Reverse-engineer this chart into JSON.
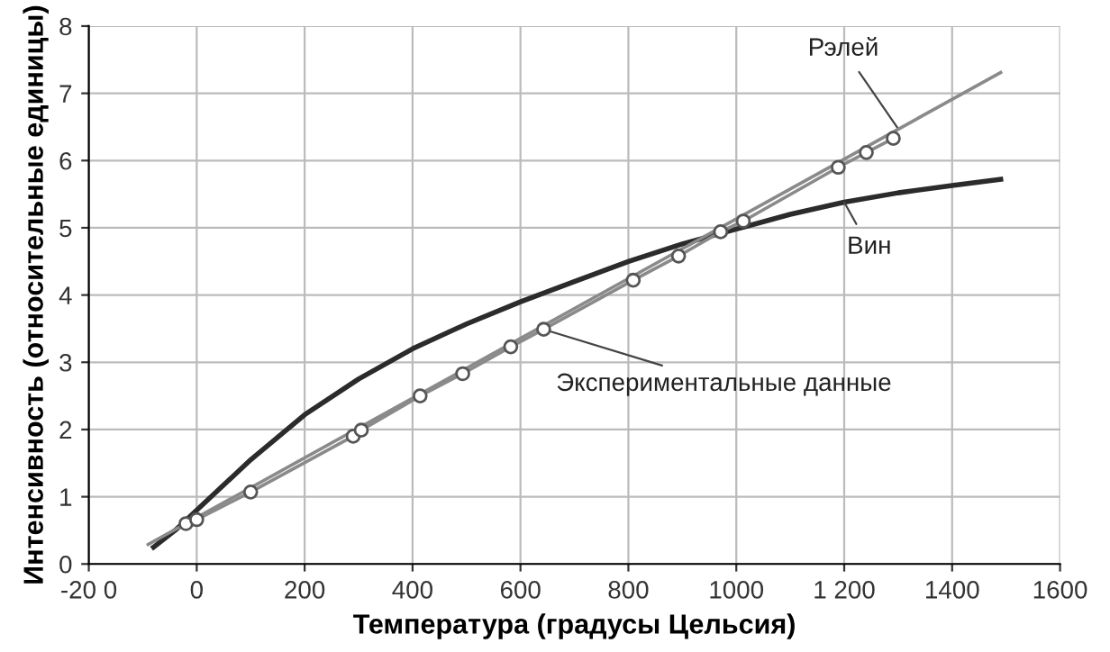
{
  "chart_data": {
    "type": "line",
    "xlabel": "Температура (градусы Цельсия)",
    "ylabel": "Интенсивность (относительные единицы)",
    "xlim": [
      -200,
      1600
    ],
    "xticks": [
      {
        "value": -200,
        "label": "-20 0"
      },
      0,
      200,
      400,
      600,
      800,
      1000,
      {
        "value": 1200,
        "label": "1 200"
      },
      1400,
      1600
    ],
    "ylim": [
      0,
      8
    ],
    "yticks": [
      0,
      1,
      2,
      3,
      4,
      5,
      6,
      7,
      8
    ],
    "grid": true,
    "series": [
      {
        "name": "Вин",
        "color": "#2b2b2b",
        "x": [
          -80,
          -40,
          0,
          100,
          200,
          300,
          400,
          500,
          600,
          700,
          800,
          900,
          1000,
          1100,
          1200,
          1300,
          1400,
          1490
        ],
        "values": [
          0.25,
          0.5,
          0.8,
          1.55,
          2.22,
          2.75,
          3.2,
          3.57,
          3.9,
          4.2,
          4.5,
          4.76,
          4.98,
          5.2,
          5.38,
          5.52,
          5.63,
          5.72
        ]
      },
      {
        "name": "Рэлей",
        "color": "#8a8a8a",
        "x": [
          -90,
          1490
        ],
        "values": [
          0.29,
          7.31
        ]
      },
      {
        "name": "Экспериментальные данные",
        "color": "#8a8a8a",
        "marker": "circle",
        "x": [
          -20,
          0,
          100,
          290,
          305,
          414,
          493,
          582,
          643,
          809,
          893,
          971,
          1013,
          1189,
          1241,
          1291
        ],
        "values": [
          0.6,
          0.66,
          1.07,
          1.9,
          1.99,
          2.5,
          2.83,
          3.23,
          3.49,
          4.22,
          4.58,
          4.94,
          5.1,
          5.9,
          6.12,
          6.33
        ]
      }
    ]
  }
}
